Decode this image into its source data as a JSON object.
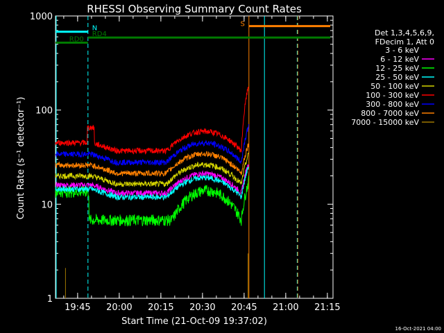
{
  "chart_data": {
    "type": "line",
    "title": "RHESSI Observing Summary Count Rates",
    "xlabel": "Start Time (21-Oct-09 19:37:02)",
    "ylabel": "Count Rate (s⁻¹ detector⁻¹)",
    "yscale": "log",
    "ylim": [
      1,
      1000
    ],
    "xlim_min": [
      0,
      100
    ],
    "x_unit": "minutes since 19:37:02",
    "x_ticks": [
      {
        "label": "19:45",
        "value": 7.97
      },
      {
        "label": "20:00",
        "value": 22.97
      },
      {
        "label": "20:15",
        "value": 37.97
      },
      {
        "label": "20:30",
        "value": 52.97
      },
      {
        "label": "20:45",
        "value": 67.97
      },
      {
        "label": "21:00",
        "value": 82.97
      },
      {
        "label": "21:15",
        "value": 97.97
      }
    ],
    "y_ticks": [
      {
        "label": "1",
        "value": 1
      },
      {
        "label": "10",
        "value": 10
      },
      {
        "label": "100",
        "value": 100
      },
      {
        "label": "1000",
        "value": 1000
      }
    ],
    "legend": {
      "header": [
        "Det 1,3,4,5,6,9,",
        "FDecim 1, Att 0"
      ],
      "placement": "right"
    },
    "series": [
      {
        "name": "3 - 6 keV",
        "color": "#000000",
        "base": 13,
        "flare_peak": 22
      },
      {
        "name": "6 - 12 keV",
        "color": "#ff00ff",
        "base": 16,
        "flare_peak": 28
      },
      {
        "name": "12 - 25 keV",
        "color": "#00ff00",
        "base": 8,
        "flare_peak": 18
      },
      {
        "name": "25 - 50 keV",
        "color": "#00ffff",
        "base": 14.5,
        "flare_peak": 26
      },
      {
        "name": "50 - 100 keV",
        "color": "#d4d400",
        "base": 20,
        "flare_peak": 35
      },
      {
        "name": "100 - 300 keV",
        "color": "#ff0000",
        "base": 45,
        "flare_peak": 190
      },
      {
        "name": "300 - 800 keV",
        "color": "#0000ff",
        "base": 34,
        "flare_peak": 70
      },
      {
        "name": "800 - 7000 keV",
        "color": "#ff8000",
        "base": 26,
        "flare_peak": 45
      },
      {
        "name": "7000 - 15000 keV",
        "color": "#a07800",
        "base": 1,
        "flare_peak": 3
      }
    ],
    "markers": {
      "night": [
        {
          "label": "N",
          "start": 0.0,
          "end": 11.7,
          "color": "#00ffff",
          "level": 680
        }
      ],
      "saa": [
        {
          "label": "S",
          "start": 69.7,
          "end": 99.0,
          "color": "#ff8000",
          "level": 780
        }
      ],
      "decimation": [
        {
          "label": "RD0",
          "start": 0.0,
          "end": 11.7,
          "color": "#007a00",
          "level": 520
        },
        {
          "label": "RD4",
          "start": 11.7,
          "end": 99.0,
          "color": "#007a00",
          "level": 590
        }
      ],
      "vlines": [
        {
          "x": 11.7,
          "color": "#00ffff",
          "style": "dash"
        },
        {
          "x": 69.7,
          "color": "#ff8000",
          "style": "solid"
        },
        {
          "x": 75.3,
          "color": "#00ffff",
          "style": "solid"
        },
        {
          "x": 87.1,
          "color": "#00ffff",
          "style": "dash"
        },
        {
          "x": 87.3,
          "color": "#ff8000",
          "style": "dash"
        }
      ]
    },
    "timestamp": "16-Oct-2021 04:00"
  }
}
